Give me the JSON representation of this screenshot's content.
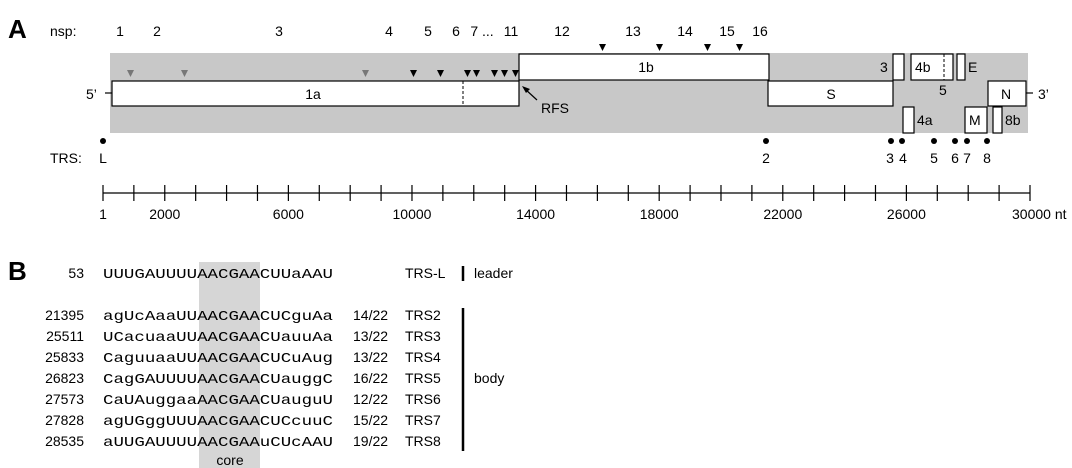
{
  "panel_a": {
    "label": "A",
    "nsp_label": "nsp:",
    "nsp_numbers": [
      "1",
      "2",
      "3",
      "4",
      "5",
      "6",
      "7 ...",
      "11",
      "12",
      "13",
      "14",
      "15",
      "16"
    ],
    "five_prime": "5’",
    "three_prime": "3’",
    "genes": [
      {
        "name": "1a",
        "start": 300,
        "end": 13400
      },
      {
        "name": "1b",
        "start": 13400,
        "end": 21450
      },
      {
        "name": "S",
        "start": 21450,
        "end": 25450
      },
      {
        "name": "3",
        "start": 25520,
        "end": 25820
      },
      {
        "name": "4a",
        "start": 25840,
        "end": 26150
      },
      {
        "name": "4b",
        "start": 26150,
        "end": 27800
      },
      {
        "name": "5",
        "start": 26150,
        "end": 27800
      },
      {
        "name": "E",
        "start": 27820,
        "end": 28100
      },
      {
        "name": "M",
        "start": 28100,
        "end": 28800
      },
      {
        "name": "8b",
        "start": 28850,
        "end": 29200
      },
      {
        "name": "N",
        "start": 29200,
        "end": 30400
      }
    ],
    "rfs_label": "RFS",
    "trs_label": "TRS:",
    "trs_markers": [
      {
        "name": "L",
        "pos": 53
      },
      {
        "name": "2",
        "pos": 21395
      },
      {
        "name": "3",
        "pos": 25511
      },
      {
        "name": "4",
        "pos": 25833
      },
      {
        "name": "5",
        "pos": 26823
      },
      {
        "name": "6",
        "pos": 27573
      },
      {
        "name": "7",
        "pos": 27828
      },
      {
        "name": "8",
        "pos": 28535
      }
    ],
    "axis_ticks": [
      "1",
      "2000",
      "6000",
      "10000",
      "14000",
      "18000",
      "22000",
      "26000",
      "30000 nt"
    ],
    "axis_tick_values": [
      1,
      2000,
      6000,
      10000,
      14000,
      18000,
      22000,
      26000,
      30000
    ]
  },
  "panel_b": {
    "label": "B",
    "leader_row": {
      "pos": "53",
      "seq": "UUUGAUUUUAACGAACUUaAAU",
      "name": "TRS-L",
      "group": "leader"
    },
    "body_rows": [
      {
        "pos": "21395",
        "seq": "agUcAaaUUAACGAACUCguAa",
        "score": "14/22",
        "name": "TRS2"
      },
      {
        "pos": "25511",
        "seq": "UCacuaaUUAACGAACUauuAa",
        "score": "13/22",
        "name": "TRS3"
      },
      {
        "pos": "25833",
        "seq": "CaguuaaUUAACGAACUCuAug",
        "score": "13/22",
        "name": "TRS4"
      },
      {
        "pos": "26823",
        "seq": "CagGAUUUUAACGAACUauggC",
        "score": "16/22",
        "name": "TRS5"
      },
      {
        "pos": "27573",
        "seq": "CaUAuggaaAACGAACUauguU",
        "score": "12/22",
        "name": "TRS6"
      },
      {
        "pos": "27828",
        "seq": "agUGggUUUAACGAACUCcuuC",
        "score": "15/22",
        "name": "TRS7"
      },
      {
        "pos": "28535",
        "seq": "aUUGAUUUUAACGAAuCUcAAU",
        "score": "19/22",
        "name": "TRS8"
      }
    ],
    "body_group": "body",
    "core_label": "core"
  }
}
